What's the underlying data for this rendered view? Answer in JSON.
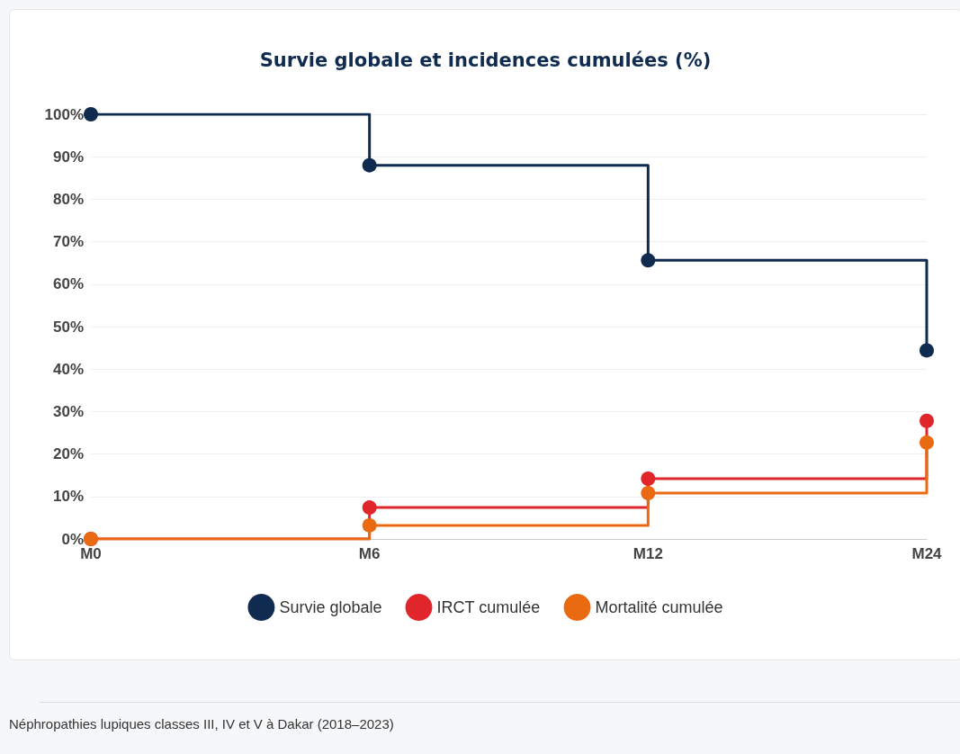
{
  "chart_data": {
    "type": "step",
    "title": "Survie globale et incidences cumulées (%)",
    "categories": [
      "M0",
      "M6",
      "M12",
      "M24"
    ],
    "series": [
      {
        "name": "Survie globale",
        "color": "#0f2b4f",
        "values": [
          100,
          88,
          65.6,
          44.4
        ]
      },
      {
        "name": "IRCT cumulée",
        "color": "#e0262b",
        "values": [
          0,
          7.4,
          14.2,
          27.8
        ]
      },
      {
        "name": "Mortalité cumulée",
        "color": "#ea6a12",
        "values": [
          0,
          3.2,
          10.8,
          22.7
        ]
      }
    ],
    "ylim": [
      0,
      100
    ],
    "yticks": [
      {
        "value": 0,
        "label": "0%"
      },
      {
        "value": 10,
        "label": "10%"
      },
      {
        "value": 20,
        "label": "20%"
      },
      {
        "value": 30,
        "label": "30%"
      },
      {
        "value": 40,
        "label": "40%"
      },
      {
        "value": 50,
        "label": "50%"
      },
      {
        "value": 60,
        "label": "60%"
      },
      {
        "value": 70,
        "label": "70%"
      },
      {
        "value": 80,
        "label": "80%"
      },
      {
        "value": 90,
        "label": "90%"
      },
      {
        "value": 100,
        "label": "100%"
      }
    ],
    "grid": "y",
    "legend": "bottom",
    "marker": "circle",
    "line_style": "solid",
    "annotations": [
      "Néphropathies lupiques classes III, IV et V à Dakar (2018–2023)"
    ]
  }
}
